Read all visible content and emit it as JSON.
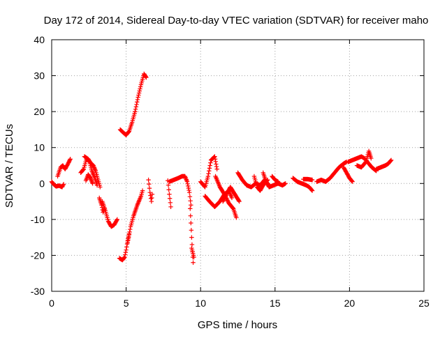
{
  "chart_data": {
    "type": "scatter",
    "title": "Day 172 of 2014, Sidereal Day-to-day VTEC variation (SDTVAR) for receiver maho",
    "xlabel": "GPS time / hours",
    "ylabel": "SDTVAR / TECUs",
    "xlim": [
      0,
      25
    ],
    "ylim": [
      -30,
      40
    ],
    "xticks": [
      "0",
      "5",
      "10",
      "15",
      "20",
      "25"
    ],
    "yticks": [
      "-30",
      "-20",
      "-10",
      "0",
      "10",
      "20",
      "30",
      "40"
    ],
    "grid": true,
    "marker": "plus",
    "color": "#ff0000",
    "segments": [
      [
        [
          0.0,
          0.5
        ],
        [
          0.15,
          -0.3
        ],
        [
          0.3,
          -0.8
        ],
        [
          0.5,
          -0.6
        ],
        [
          0.7,
          -1.0
        ],
        [
          0.8,
          -0.2
        ]
      ],
      [
        [
          0.4,
          2.0
        ],
        [
          0.6,
          4.5
        ],
        [
          0.75,
          5.0
        ],
        [
          0.9,
          4.0
        ],
        [
          1.1,
          5.5
        ],
        [
          1.25,
          6.8
        ]
      ],
      [
        [
          1.95,
          3.0
        ],
        [
          2.15,
          4.0
        ],
        [
          2.35,
          7.0
        ],
        [
          2.55,
          6.0
        ],
        [
          2.7,
          3.5
        ],
        [
          2.9,
          1.5
        ],
        [
          3.05,
          -0.5
        ]
      ],
      [
        [
          2.2,
          7.5
        ],
        [
          2.45,
          6.8
        ],
        [
          2.6,
          5.8
        ],
        [
          2.8,
          5.0
        ],
        [
          2.95,
          3.5
        ],
        [
          3.15,
          0.5
        ],
        [
          3.25,
          -1.0
        ]
      ],
      [
        [
          2.3,
          0.8
        ],
        [
          2.45,
          2.5
        ],
        [
          2.6,
          1.5
        ],
        [
          2.75,
          0.0
        ]
      ],
      [
        [
          3.2,
          -4.0
        ],
        [
          3.35,
          -6.0
        ],
        [
          3.45,
          -8.0
        ],
        [
          3.55,
          -7.0
        ]
      ],
      [
        [
          3.4,
          -5.0
        ],
        [
          3.6,
          -7.5
        ],
        [
          3.8,
          -10.5
        ],
        [
          4.0,
          -12.0
        ],
        [
          4.2,
          -11.5
        ],
        [
          4.4,
          -10.0
        ]
      ],
      [
        [
          4.55,
          -20.8
        ],
        [
          4.75,
          -21.3
        ],
        [
          4.9,
          -20.5
        ],
        [
          5.0,
          -18.5
        ],
        [
          5.1,
          -16.0
        ],
        [
          5.2,
          -14.0
        ]
      ],
      [
        [
          5.1,
          -16.5
        ],
        [
          5.3,
          -12.0
        ],
        [
          5.5,
          -9.0
        ],
        [
          5.75,
          -6.0
        ],
        [
          6.0,
          -3.5
        ],
        [
          6.1,
          -2.0
        ]
      ],
      [
        [
          4.6,
          15.0
        ],
        [
          4.85,
          14.0
        ],
        [
          5.0,
          13.5
        ],
        [
          5.2,
          14.5
        ],
        [
          5.4,
          17.0
        ],
        [
          5.6,
          20.0
        ]
      ],
      [
        [
          5.6,
          20.0
        ],
        [
          5.8,
          24.0
        ],
        [
          6.0,
          27.5
        ],
        [
          6.2,
          30.5
        ],
        [
          6.35,
          29.5
        ]
      ],
      [
        [
          6.5,
          1.0
        ],
        [
          6.6,
          -2.5
        ],
        [
          6.7,
          -5.0
        ],
        [
          6.75,
          -3.0
        ]
      ],
      [
        [
          7.8,
          0.8
        ],
        [
          7.9,
          -3.0
        ],
        [
          8.0,
          -6.5
        ]
      ],
      [
        [
          7.9,
          0.5
        ],
        [
          8.2,
          1.0
        ],
        [
          8.5,
          1.5
        ],
        [
          8.75,
          2.0
        ],
        [
          8.95,
          2.0
        ],
        [
          9.1,
          0.5
        ],
        [
          9.25,
          -2.5
        ],
        [
          9.35,
          -6.0
        ]
      ],
      [
        [
          9.3,
          -7.0
        ],
        [
          9.35,
          -11.0
        ],
        [
          9.4,
          -15.0
        ],
        [
          9.45,
          -19.0
        ],
        [
          9.5,
          -22.0
        ]
      ],
      [
        [
          9.4,
          -18.0
        ],
        [
          9.55,
          -20.5
        ]
      ],
      [
        [
          10.0,
          0.5
        ],
        [
          10.3,
          -1.0
        ],
        [
          10.5,
          2.0
        ],
        [
          10.7,
          6.5
        ],
        [
          10.95,
          7.5
        ],
        [
          11.1,
          4.0
        ]
      ],
      [
        [
          10.3,
          -3.5
        ],
        [
          10.6,
          -5.0
        ],
        [
          10.95,
          -6.5
        ],
        [
          11.3,
          -5.0
        ],
        [
          11.6,
          -3.0
        ],
        [
          11.9,
          -2.0
        ],
        [
          12.1,
          -4.0
        ]
      ],
      [
        [
          11.0,
          2.0
        ],
        [
          11.3,
          -1.0
        ],
        [
          11.6,
          -3.0
        ],
        [
          11.9,
          -5.5
        ],
        [
          12.2,
          -7.0
        ],
        [
          12.4,
          -9.5
        ]
      ],
      [
        [
          11.5,
          -5.0
        ],
        [
          11.8,
          -2.5
        ],
        [
          12.0,
          -1.0
        ],
        [
          12.3,
          -3.0
        ],
        [
          12.6,
          -5.0
        ]
      ],
      [
        [
          12.5,
          3.0
        ],
        [
          12.8,
          1.0
        ],
        [
          13.1,
          -0.5
        ],
        [
          13.4,
          -1.0
        ],
        [
          13.7,
          0.0
        ],
        [
          14.0,
          -0.5
        ],
        [
          14.3,
          1.0
        ],
        [
          14.6,
          -0.5
        ]
      ],
      [
        [
          13.6,
          2.0
        ],
        [
          13.8,
          -1.0
        ],
        [
          14.0,
          -2.0
        ],
        [
          14.2,
          -0.5
        ],
        [
          14.5,
          1.0
        ]
      ],
      [
        [
          14.2,
          3.0
        ],
        [
          14.4,
          0.5
        ],
        [
          14.6,
          -1.0
        ],
        [
          14.9,
          -0.5
        ],
        [
          15.2,
          0.0
        ],
        [
          15.5,
          -0.5
        ],
        [
          15.7,
          0.0
        ]
      ],
      [
        [
          14.8,
          2.0
        ],
        [
          15.0,
          1.0
        ],
        [
          15.2,
          0.5
        ]
      ],
      [
        [
          16.2,
          1.5
        ],
        [
          16.5,
          0.5
        ],
        [
          16.8,
          0.0
        ],
        [
          17.1,
          -0.5
        ],
        [
          17.3,
          -1.0
        ],
        [
          17.5,
          -2.0
        ]
      ],
      [
        [
          16.9,
          1.2
        ],
        [
          17.2,
          1.2
        ],
        [
          17.5,
          1.0
        ]
      ],
      [
        [
          17.8,
          0.5
        ],
        [
          18.1,
          1.0
        ],
        [
          18.4,
          0.5
        ],
        [
          18.7,
          1.5
        ],
        [
          19.0,
          3.0
        ],
        [
          19.3,
          4.5
        ],
        [
          19.6,
          5.5
        ],
        [
          19.8,
          6.0
        ]
      ],
      [
        [
          19.6,
          4.5
        ],
        [
          19.8,
          3.0
        ],
        [
          20.0,
          1.5
        ],
        [
          20.2,
          0.5
        ]
      ],
      [
        [
          19.9,
          6.0
        ],
        [
          20.2,
          6.5
        ],
        [
          20.5,
          7.0
        ],
        [
          20.8,
          7.5
        ],
        [
          21.0,
          7.0
        ],
        [
          21.2,
          6.0
        ],
        [
          21.5,
          4.5
        ],
        [
          21.8,
          3.5
        ]
      ],
      [
        [
          20.5,
          5.0
        ],
        [
          20.8,
          4.5
        ],
        [
          21.1,
          6.0
        ],
        [
          21.3,
          9.0
        ],
        [
          21.45,
          7.0
        ]
      ],
      [
        [
          21.8,
          4.0
        ],
        [
          22.1,
          4.5
        ],
        [
          22.4,
          5.0
        ],
        [
          22.6,
          5.5
        ],
        [
          22.8,
          6.5
        ]
      ]
    ]
  }
}
